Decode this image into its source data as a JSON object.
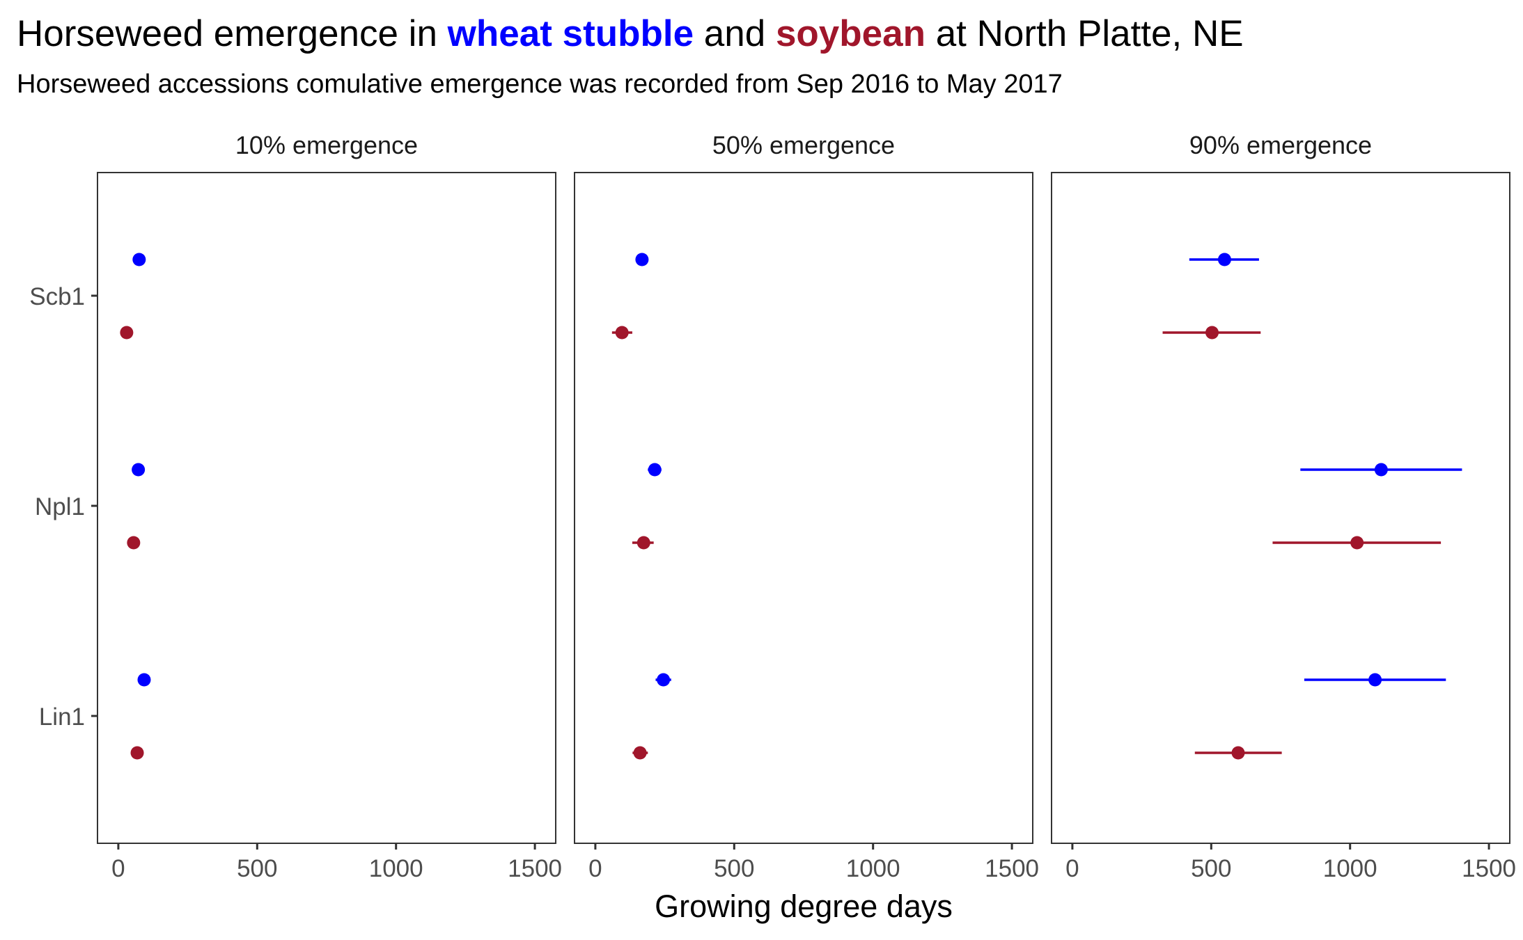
{
  "title": {
    "part1": "Horseweed emergence in ",
    "wheat": "wheat stubble",
    "part2": " and ",
    "soybean": "soybean",
    "part3": " at North Platte, NE"
  },
  "subtitle": "Horseweed accessions comulative emergence was recorded from Sep 2016 to May 2017",
  "colors": {
    "wheat": "#0000ff",
    "soybean": "#a0162b",
    "axis": "#333333",
    "tick_label": "#4d4d4d"
  },
  "chart_data": {
    "type": "scatter",
    "subtype": "dot plot with horizontal error bars, faceted",
    "xlabel": "Growing degree days",
    "ylabel": "",
    "xlim": [
      -75,
      1575
    ],
    "x_ticks": [
      0,
      500,
      1000,
      1500
    ],
    "x_tick_labels": [
      "0",
      "500",
      "1000",
      "1500"
    ],
    "accessions": [
      "Scb1",
      "Npl1",
      "Lin1"
    ],
    "grid": false,
    "legend": "none (series encoded by title colors)",
    "series": [
      {
        "key": "wheat",
        "color_key": "wheat"
      },
      {
        "key": "soybean",
        "color_key": "soybean"
      }
    ],
    "facets": [
      {
        "label": "10% emergence",
        "points": [
          {
            "accession": "Scb1",
            "series": "wheat",
            "x": 75,
            "xmin": 75,
            "xmax": 75
          },
          {
            "accession": "Scb1",
            "series": "soybean",
            "x": 30,
            "xmin": 30,
            "xmax": 30
          },
          {
            "accession": "Npl1",
            "series": "wheat",
            "x": 72,
            "xmin": 72,
            "xmax": 72
          },
          {
            "accession": "Npl1",
            "series": "soybean",
            "x": 55,
            "xmin": 55,
            "xmax": 55
          },
          {
            "accession": "Lin1",
            "series": "wheat",
            "x": 93,
            "xmin": 93,
            "xmax": 93
          },
          {
            "accession": "Lin1",
            "series": "soybean",
            "x": 68,
            "xmin": 68,
            "xmax": 68
          }
        ]
      },
      {
        "label": "50% emergence",
        "points": [
          {
            "accession": "Scb1",
            "series": "wheat",
            "x": 168,
            "xmin": 168,
            "xmax": 168
          },
          {
            "accession": "Scb1",
            "series": "soybean",
            "x": 96,
            "xmin": 60,
            "xmax": 133
          },
          {
            "accession": "Npl1",
            "series": "wheat",
            "x": 214,
            "xmin": 189,
            "xmax": 238
          },
          {
            "accession": "Npl1",
            "series": "soybean",
            "x": 174,
            "xmin": 133,
            "xmax": 210
          },
          {
            "accession": "Lin1",
            "series": "wheat",
            "x": 245,
            "xmin": 217,
            "xmax": 273
          },
          {
            "accession": "Lin1",
            "series": "soybean",
            "x": 161,
            "xmin": 134,
            "xmax": 189
          }
        ]
      },
      {
        "label": "90% emergence",
        "points": [
          {
            "accession": "Scb1",
            "series": "wheat",
            "x": 548,
            "xmin": 421,
            "xmax": 672
          },
          {
            "accession": "Scb1",
            "series": "soybean",
            "x": 503,
            "xmin": 325,
            "xmax": 678
          },
          {
            "accession": "Npl1",
            "series": "wheat",
            "x": 1112,
            "xmin": 821,
            "xmax": 1403
          },
          {
            "accession": "Npl1",
            "series": "soybean",
            "x": 1025,
            "xmin": 721,
            "xmax": 1327
          },
          {
            "accession": "Lin1",
            "series": "wheat",
            "x": 1090,
            "xmin": 835,
            "xmax": 1345
          },
          {
            "accession": "Lin1",
            "series": "soybean",
            "x": 597,
            "xmin": 441,
            "xmax": 754
          }
        ]
      }
    ]
  }
}
